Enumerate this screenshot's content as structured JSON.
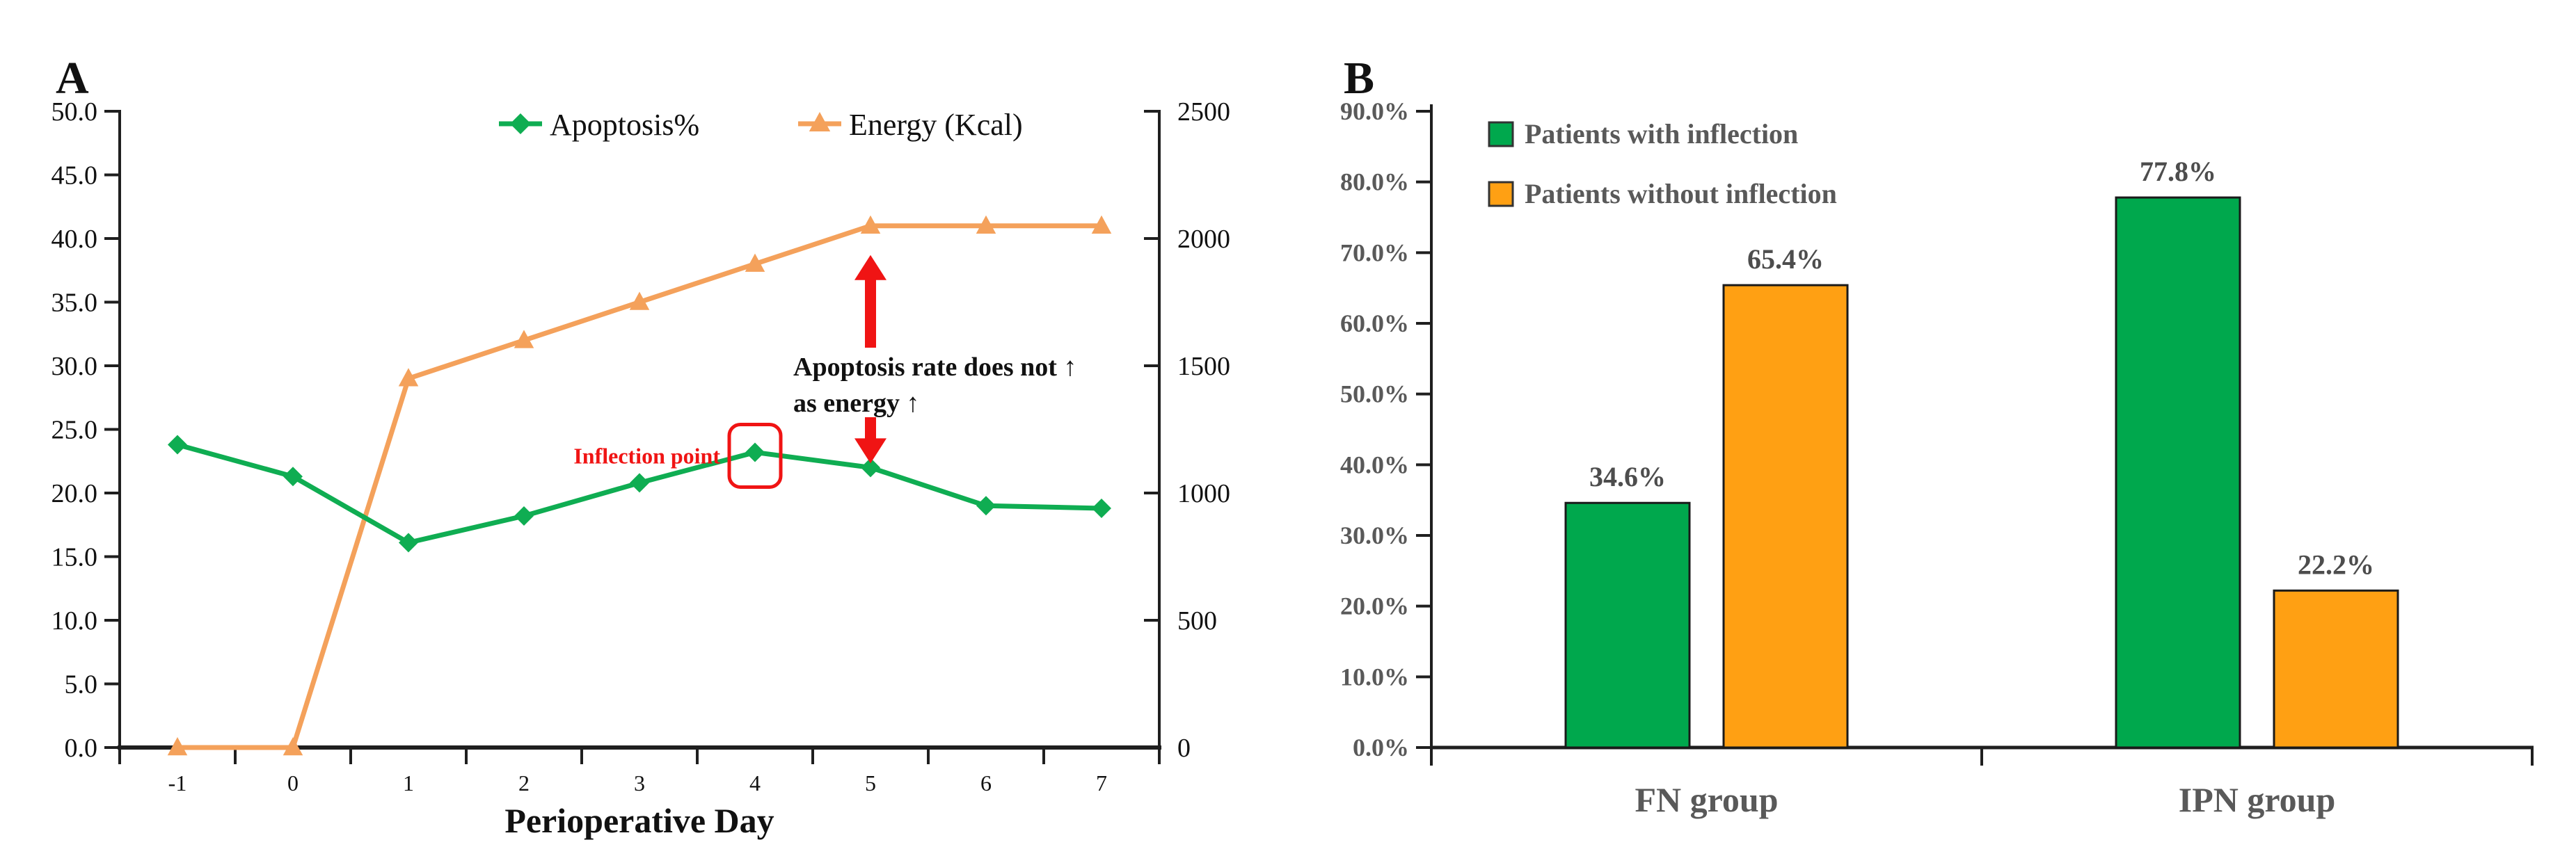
{
  "figure": {
    "panel_a_letter": "A",
    "panel_b_letter": "B"
  },
  "colors": {
    "apoptosis_green": "#0FAD52",
    "bar_green": "#00A84D",
    "energy_orange": "#F4A15B",
    "bar_orange": "#FFA013",
    "annotation_red": "#F01414",
    "axis_black": "#1F1F1F",
    "text_black": "#111111",
    "gray_text": "#595959",
    "value_text": "#4D4D4D"
  },
  "chart_data": [
    {
      "type": "line",
      "panel": "A",
      "xlabel": "Perioperative Day",
      "x_categories": [
        "-1",
        "0",
        "1",
        "2",
        "3",
        "4",
        "5",
        "6",
        "7"
      ],
      "left_axis": {
        "min": 0,
        "max": 50,
        "step": 5,
        "tick_labels": [
          "0.0",
          "5.0",
          "10.0",
          "15.0",
          "20.0",
          "25.0",
          "30.0",
          "35.0",
          "40.0",
          "45.0",
          "50.0"
        ]
      },
      "right_axis": {
        "min": 0,
        "max": 2500,
        "step": 500,
        "tick_labels": [
          "0",
          "500",
          "1000",
          "1500",
          "2000",
          "2500"
        ]
      },
      "legend_position": "top-center",
      "grid": false,
      "series": [
        {
          "name": "Apoptosis%",
          "axis": "left",
          "marker": "diamond",
          "values": [
            23.8,
            21.3,
            16.1,
            18.2,
            20.8,
            23.2,
            22.0,
            19.0,
            18.8
          ]
        },
        {
          "name": "Energy (Kcal)",
          "axis": "right",
          "marker": "triangle",
          "values": [
            0,
            0,
            1450,
            1600,
            1750,
            1900,
            2050,
            2050,
            2050
          ]
        }
      ],
      "annotations": {
        "inflection_label": "Inflection point",
        "inflection_category_index": 5,
        "note_line1": "Apoptosis rate does not ↑",
        "note_line2": "as energy ↑",
        "note_category_index": 6
      }
    },
    {
      "type": "bar",
      "panel": "B",
      "categories": [
        "FN group",
        "IPN group"
      ],
      "y_axis": {
        "min": 0,
        "max": 90,
        "step": 10,
        "tick_labels": [
          "0.0%",
          "10.0%",
          "20.0%",
          "30.0%",
          "40.0%",
          "50.0%",
          "60.0%",
          "70.0%",
          "80.0%",
          "90.0%"
        ]
      },
      "legend_position": "top-left",
      "grid": false,
      "series": [
        {
          "name": "Patients with inflection",
          "values": [
            34.6,
            77.8
          ],
          "labels": [
            "34.6%",
            "77.8%"
          ]
        },
        {
          "name": "Patients without inflection",
          "values": [
            65.4,
            22.2
          ],
          "labels": [
            "65.4%",
            "22.2%"
          ]
        }
      ]
    }
  ]
}
